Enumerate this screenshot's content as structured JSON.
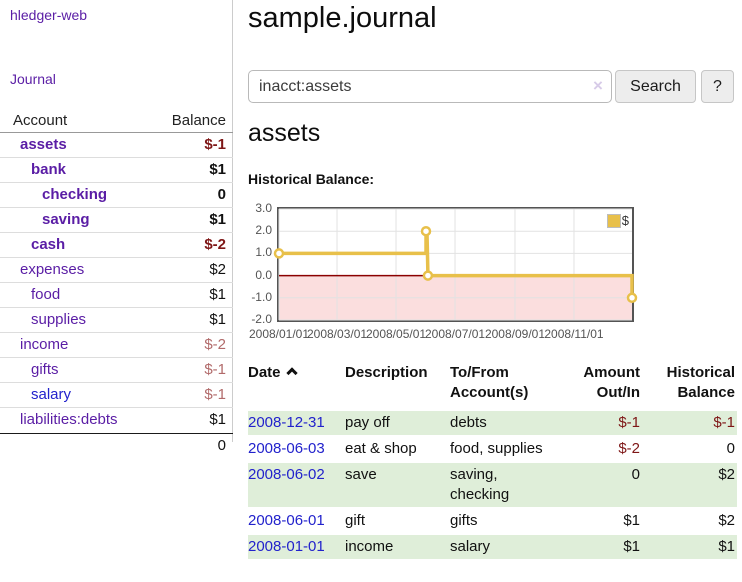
{
  "sidebar": {
    "brand": "hledger-web",
    "journal_link": "Journal",
    "accounts": {
      "header": {
        "account": "Account",
        "balance": "Balance"
      },
      "rows": [
        {
          "name": "assets",
          "balance": "$-1"
        },
        {
          "name": "bank",
          "balance": "$1"
        },
        {
          "name": "checking",
          "balance": "0"
        },
        {
          "name": "saving",
          "balance": "$1"
        },
        {
          "name": "cash",
          "balance": "$-2"
        },
        {
          "name": "expenses",
          "balance": "$2"
        },
        {
          "name": "food",
          "balance": "$1"
        },
        {
          "name": "supplies",
          "balance": "$1"
        },
        {
          "name": "income",
          "balance": "$-2"
        },
        {
          "name": "gifts",
          "balance": "$-1"
        },
        {
          "name": "salary",
          "balance": "$-1"
        },
        {
          "name": "liabilities:debts",
          "balance": "$1"
        }
      ],
      "total": "0"
    }
  },
  "header": {
    "title": "sample.journal"
  },
  "search": {
    "value": "inacct:assets",
    "clear": "×",
    "submit": "Search",
    "help": "?"
  },
  "account_page": {
    "title": "assets"
  },
  "chart_data": {
    "type": "line",
    "title": "Historical Balance:",
    "xlim": [
      "2008/01/01",
      "2008/12/31"
    ],
    "ylim": [
      -2,
      3
    ],
    "y_ticks": [
      3.0,
      2.0,
      1.0,
      0.0,
      -1.0,
      -2.0
    ],
    "x_tick_labels": [
      "2008/01/01",
      "2008/03/01",
      "2008/05/01",
      "2008/07/01",
      "2008/09/01",
      "2008/11/01"
    ],
    "legend_position": "top-right",
    "grid": true,
    "zero_line_color": "#8b0000",
    "negative_region_color": "#fbdede",
    "series": [
      {
        "name": "$",
        "color": "#e8c04a",
        "points": [
          [
            "2008/01/01",
            1
          ],
          [
            "2008/06/01",
            1
          ],
          [
            "2008/06/01",
            2
          ],
          [
            "2008/06/02",
            2
          ],
          [
            "2008/06/03",
            0
          ],
          [
            "2008/12/31",
            0
          ],
          [
            "2008/12/31",
            -1
          ]
        ],
        "markers": [
          [
            "2008/01/01",
            1
          ],
          [
            "2008/06/01",
            2
          ],
          [
            "2008/06/03",
            0
          ],
          [
            "2008/12/31",
            -1
          ]
        ]
      }
    ]
  },
  "register": {
    "headers": {
      "date": "Date",
      "description": "Description",
      "tofrom": "To/From Account(s)",
      "amount": "Amount Out/In",
      "balance": "Historical Balance"
    },
    "rows": [
      {
        "date": "2008-12-31",
        "description": "pay off",
        "tofrom": "debts",
        "amount": "$-1",
        "balance": "$-1"
      },
      {
        "date": "2008-06-03",
        "description": "eat & shop",
        "tofrom": "food, supplies",
        "amount": "$-2",
        "balance": "0"
      },
      {
        "date": "2008-06-02",
        "description": "save",
        "tofrom": "saving, checking",
        "amount": "0",
        "balance": "$2"
      },
      {
        "date": "2008-06-01",
        "description": "gift",
        "tofrom": "gifts",
        "amount": "$1",
        "balance": "$2"
      },
      {
        "date": "2008-01-01",
        "description": "income",
        "tofrom": "salary",
        "amount": "$1",
        "balance": "$1"
      }
    ]
  },
  "colors": {
    "link_purple": "#5a1da5",
    "link_blue": "#2222cc",
    "negative_strong": "#7e1616",
    "negative_soft": "#b16a6a",
    "row_green": "#dfeed9",
    "chart_line_gold": "#e8c04a",
    "chart_zero_line": "#8b0000",
    "chart_negative_fill": "#fbdede"
  }
}
